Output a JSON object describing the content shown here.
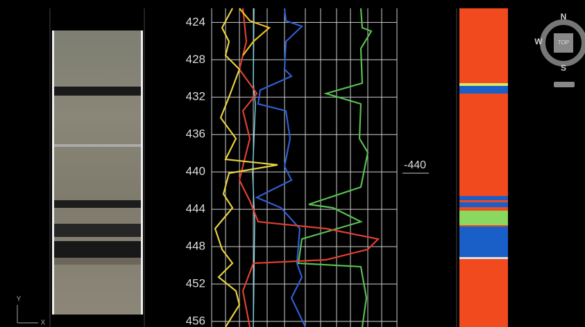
{
  "depth_track": {
    "ylim": [
      421.6,
      456.6
    ],
    "yticks": [
      424,
      428,
      432,
      436,
      440,
      444,
      448,
      452,
      456
    ]
  },
  "marker": {
    "label": "-440"
  },
  "compass": {
    "north": "N",
    "south": "S",
    "west": "W",
    "button": "TOP"
  },
  "axis_icon": {
    "x": "X",
    "y": "Y"
  }
}
